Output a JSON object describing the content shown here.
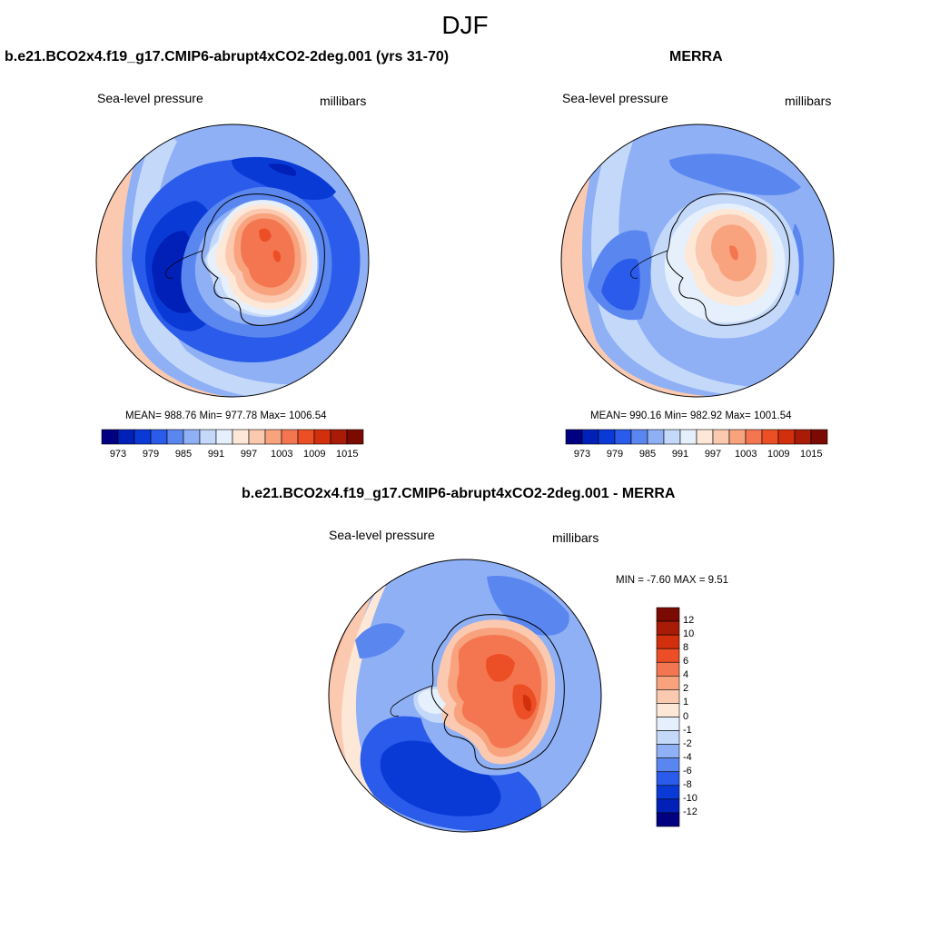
{
  "title": "DJF",
  "palette": [
    "#000080",
    "#0020b8",
    "#0a3ad6",
    "#2a5bea",
    "#5a86f0",
    "#8fb0f5",
    "#c4d8fa",
    "#e6f0fc",
    "#fde8d8",
    "#fbc9b0",
    "#f8a27e",
    "#f47650",
    "#ec4e25",
    "#d22f0c",
    "#a81b06",
    "#7a0a02"
  ],
  "panels": {
    "model": {
      "title": "b.e21.BCO2x4.f19_g17.CMIP6-abrupt4xCO2-2deg.001 (yrs 31-70)",
      "variable": "Sea-level pressure",
      "units": "millibars",
      "stats": "MEAN= 988.76  Min= 977.78  Max= 1006.54",
      "colorbar_ticks": [
        "973",
        "979",
        "985",
        "991",
        "997",
        "1003",
        "1009",
        "1015"
      ]
    },
    "obs": {
      "title": "MERRA",
      "variable": "Sea-level pressure",
      "units": "millibars",
      "stats": "MEAN= 990.16  Min= 982.92  Max= 1001.54",
      "colorbar_ticks": [
        "973",
        "979",
        "985",
        "991",
        "997",
        "1003",
        "1009",
        "1015"
      ]
    },
    "diff": {
      "title": "b.e21.BCO2x4.f19_g17.CMIP6-abrupt4xCO2-2deg.001 - MERRA",
      "variable": "Sea-level pressure",
      "units": "millibars",
      "stats": "MIN =  -7.60 MAX =   9.51",
      "colorbar_ticks": [
        "12",
        "10",
        "8",
        "6",
        "4",
        "2",
        "1",
        "0",
        "-1",
        "-2",
        "-4",
        "-6",
        "-8",
        "-10",
        "-12"
      ]
    }
  }
}
